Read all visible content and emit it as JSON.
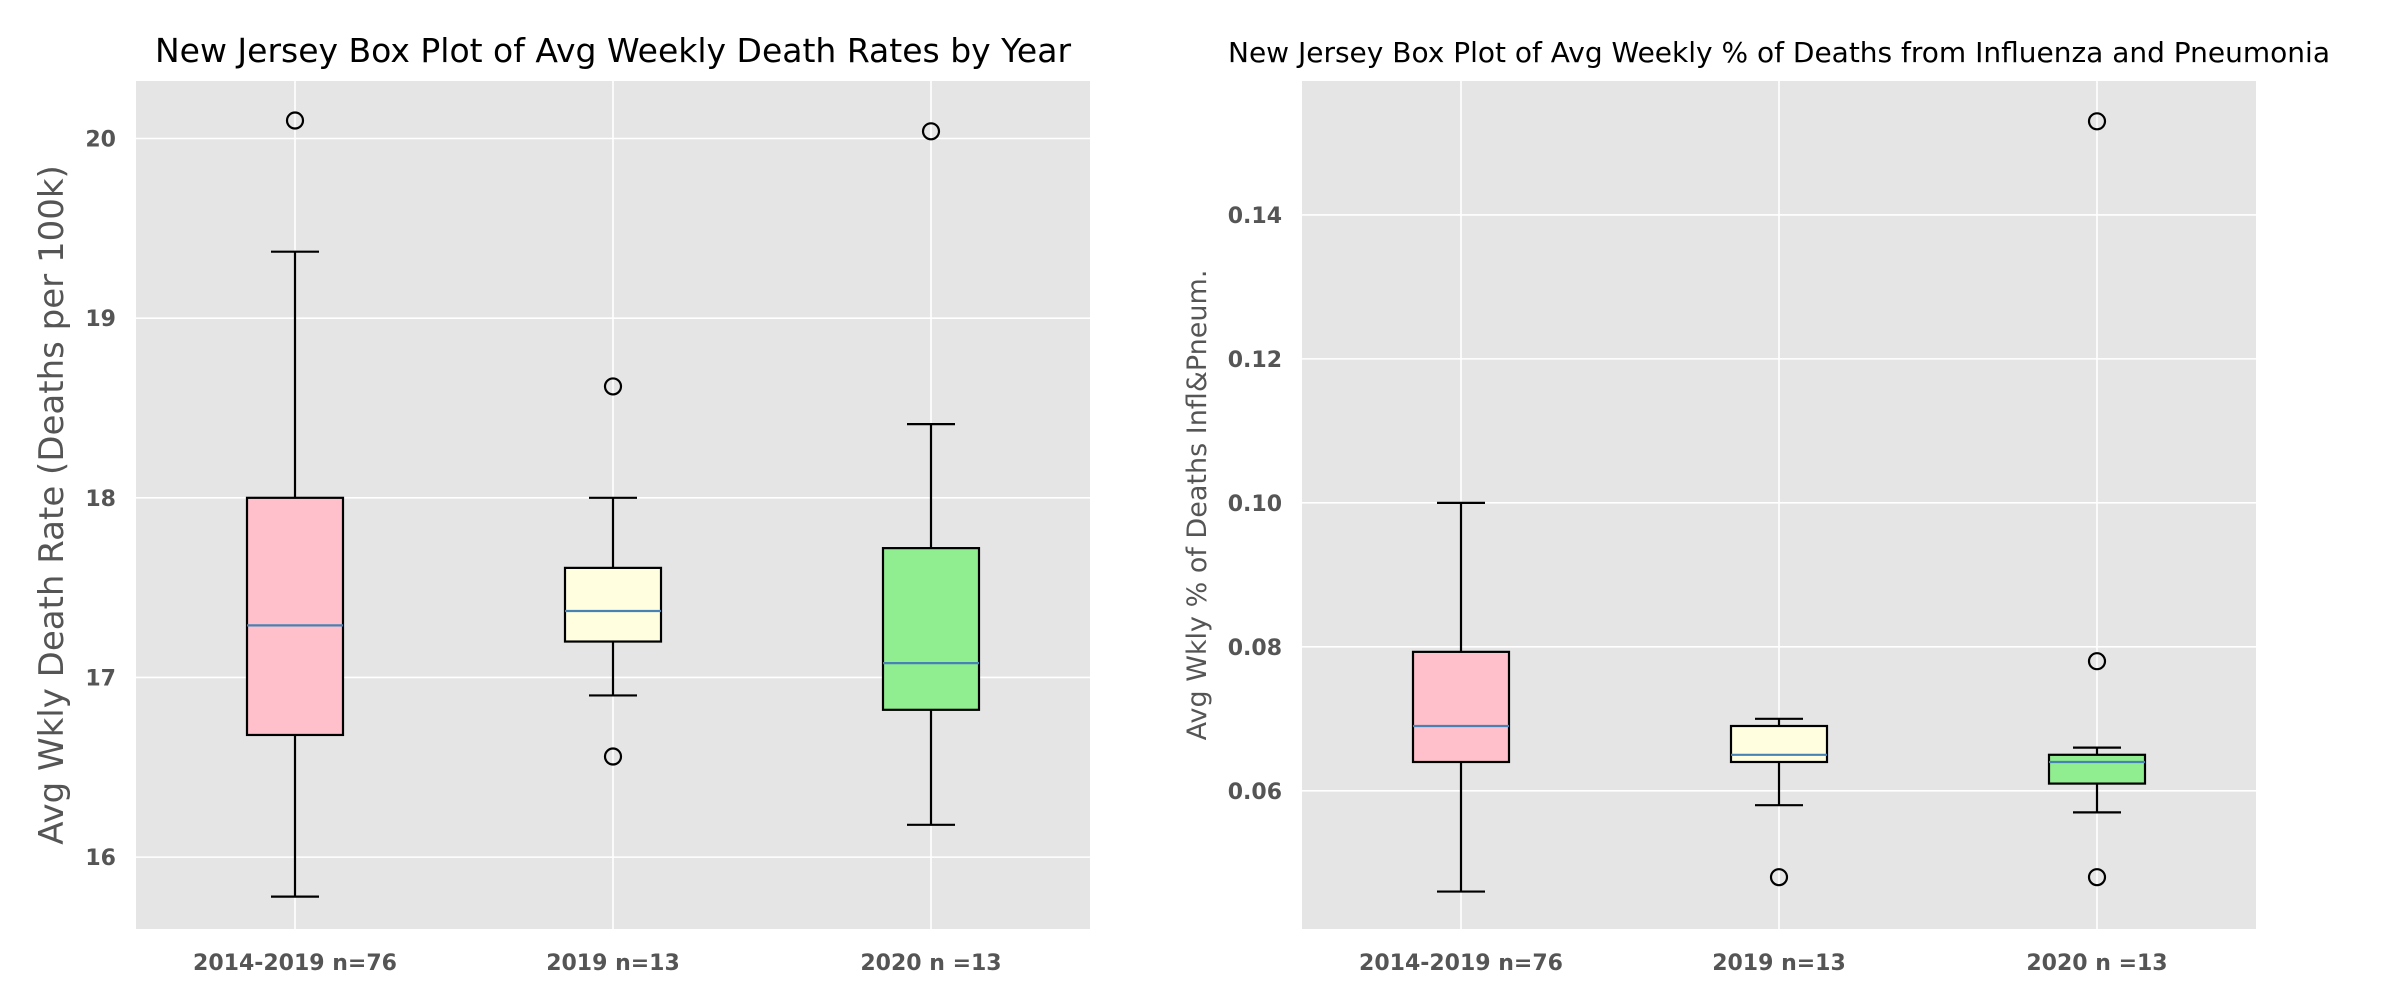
{
  "chart_data": [
    {
      "type": "box",
      "title": "New Jersey Box Plot of Avg Weekly Death Rates by Year",
      "xlabel": "",
      "ylabel": "Avg Wkly Death Rate (Deaths per 100k)",
      "ylim": [
        15.6,
        20.32
      ],
      "yticks": [
        16,
        17,
        18,
        19,
        20
      ],
      "ytick_labels": [
        "16",
        "17",
        "18",
        "19",
        "20"
      ],
      "grid": true,
      "categories": [
        "2014-2019 n=76",
        "2019 n=13",
        "2020 n =13"
      ],
      "boxes": [
        {
          "category": "2014-2019 n=76",
          "whisker_low": 15.78,
          "q1": 16.68,
          "median": 17.29,
          "q3": 18.0,
          "whisker_high": 19.37,
          "outliers": [
            20.1
          ],
          "color": "#ffc0cb"
        },
        {
          "category": "2019 n=13",
          "whisker_low": 16.9,
          "q1": 17.2,
          "median": 17.37,
          "q3": 17.61,
          "whisker_high": 18.0,
          "outliers": [
            18.62,
            16.56
          ],
          "color": "#ffffe0"
        },
        {
          "category": "2020 n =13",
          "whisker_low": 16.18,
          "q1": 16.82,
          "median": 17.08,
          "q3": 17.72,
          "whisker_high": 18.41,
          "outliers": [
            20.04
          ],
          "color": "#90ee90"
        }
      ]
    },
    {
      "type": "box",
      "title": "New Jersey Box Plot of Avg Weekly % of Deaths from Influenza and Pneumonia",
      "xlabel": "",
      "ylabel": "Avg Wkly % of Deaths Infl&Pneum.",
      "ylim": [
        0.0408,
        0.1586
      ],
      "yticks": [
        0.06,
        0.08,
        0.1,
        0.12,
        0.14
      ],
      "ytick_labels": [
        "0.06",
        "0.08",
        "0.10",
        "0.12",
        "0.14"
      ],
      "grid": true,
      "categories": [
        "2014-2019 n=76",
        "2019 n=13",
        "2020 n =13"
      ],
      "boxes": [
        {
          "category": "2014-2019 n=76",
          "whisker_low": 0.046,
          "q1": 0.064,
          "median": 0.069,
          "q3": 0.0793,
          "whisker_high": 0.1,
          "outliers": [],
          "color": "#ffc0cb"
        },
        {
          "category": "2019 n=13",
          "whisker_low": 0.058,
          "q1": 0.064,
          "median": 0.065,
          "q3": 0.069,
          "whisker_high": 0.07,
          "outliers": [
            0.048
          ],
          "color": "#ffffe0"
        },
        {
          "category": "2020 n =13",
          "whisker_low": 0.057,
          "q1": 0.061,
          "median": 0.064,
          "q3": 0.065,
          "whisker_high": 0.066,
          "outliers": [
            0.153,
            0.078,
            0.048
          ],
          "color": "#90ee90"
        }
      ]
    }
  ],
  "style": {
    "axes_background": "#e5e5e5",
    "grid_color": "#ffffff",
    "median_color": "#4682b4",
    "line_color": "#000000"
  }
}
